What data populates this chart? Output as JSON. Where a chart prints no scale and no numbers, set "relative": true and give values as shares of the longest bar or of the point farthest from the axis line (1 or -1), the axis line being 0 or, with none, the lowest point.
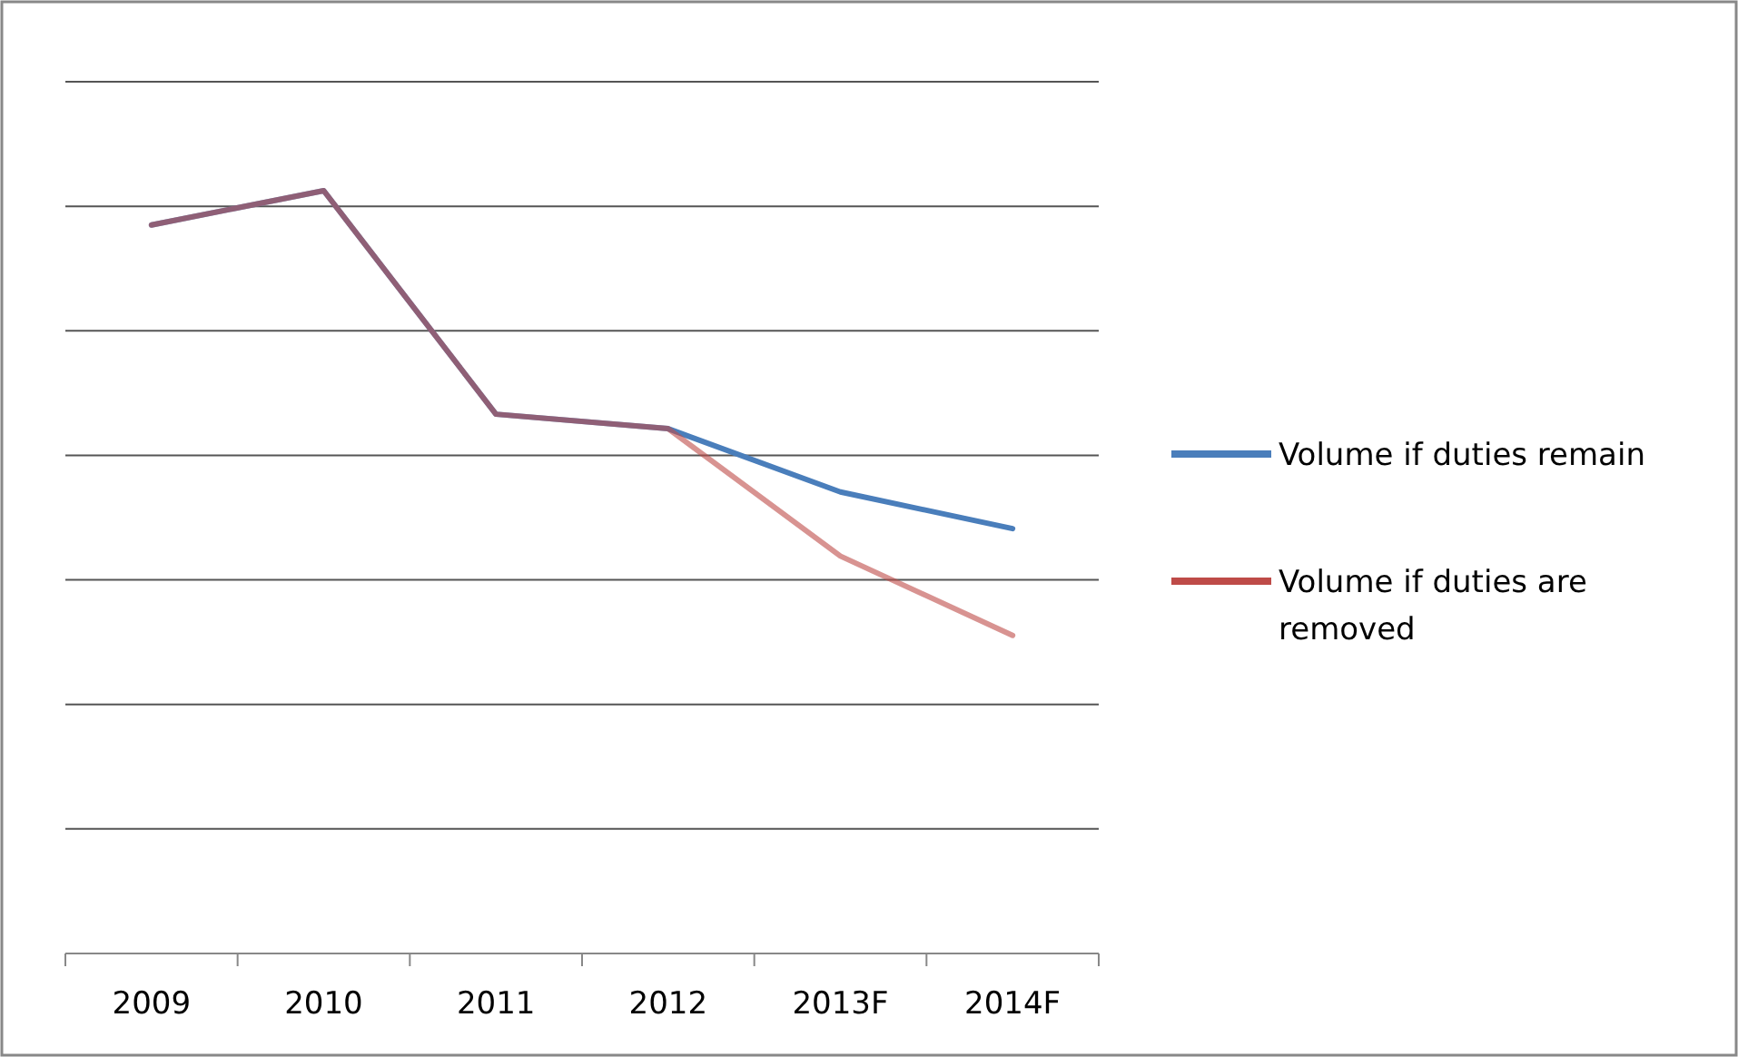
{
  "chart_data": {
    "type": "line",
    "relative": true,
    "categories": [
      "2009",
      "2010",
      "2011",
      "2012",
      "2013F",
      "2014F"
    ],
    "series": [
      {
        "name": "Volume if duties remain",
        "color": "#4a7ebb",
        "values": [
          0.955,
          1,
          0.707,
          0.688,
          0.605,
          0.557
        ]
      },
      {
        "name": "Volume if duties are removed",
        "color": "#be4b48",
        "values": [
          0.955,
          1,
          0.707,
          0.688,
          0.521,
          0.417
        ]
      }
    ],
    "grid": "y",
    "legend": "right",
    "marker": "none",
    "line_style": "solid"
  }
}
